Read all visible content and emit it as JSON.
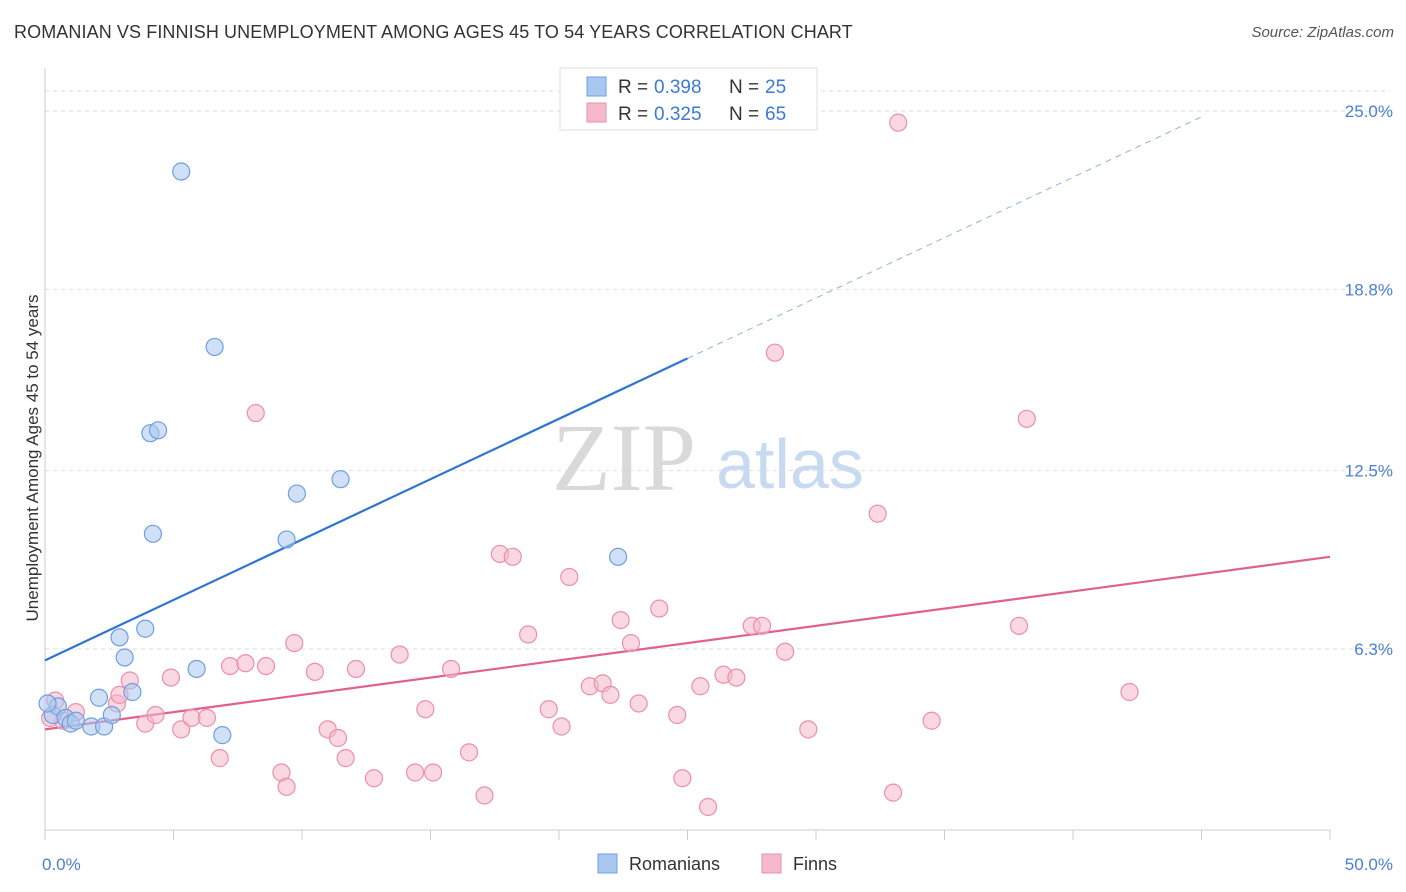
{
  "header": {
    "title": "ROMANIAN VS FINNISH UNEMPLOYMENT AMONG AGES 45 TO 54 YEARS CORRELATION CHART",
    "source": "Source: ZipAtlas.com"
  },
  "watermark": {
    "zip": "ZIP",
    "atlas": "atlas"
  },
  "legend": {
    "r_label": "R =",
    "n_label": "N =",
    "rows": [
      {
        "r": "0.398",
        "n": "25",
        "color": "#a9c8f0"
      },
      {
        "r": "0.325",
        "n": "65",
        "color": "#f6b8cb"
      }
    ]
  },
  "chart_data": {
    "type": "scatter",
    "ylabel": "Unemployment Among Ages 45 to 54 years",
    "xlim": [
      0,
      50
    ],
    "ylim": [
      0,
      26.5
    ],
    "x_tick_labels": [
      "0.0%",
      "50.0%"
    ],
    "y_ticks": [
      6.3,
      12.5,
      18.8,
      25.0
    ],
    "y_tick_labels": [
      "6.3%",
      "12.5%",
      "18.8%",
      "25.0%"
    ],
    "grid": true,
    "legend_position": "top-center",
    "series": [
      {
        "name": "Romanians",
        "color": "#a9c8f0",
        "stroke": "#6f9fe0",
        "line_color": "#2e74d1",
        "trend": {
          "x1": 0,
          "y1": 5.9,
          "x2": 25,
          "y2": 16.4,
          "dashed_to_x": 45,
          "dashed_to_y": 24.8
        },
        "points": [
          [
            0.3,
            4.0
          ],
          [
            0.5,
            4.3
          ],
          [
            0.8,
            3.9
          ],
          [
            1.0,
            3.7
          ],
          [
            1.2,
            3.8
          ],
          [
            1.8,
            3.6
          ],
          [
            2.1,
            4.6
          ],
          [
            2.3,
            3.6
          ],
          [
            2.6,
            4.0
          ],
          [
            2.9,
            6.7
          ],
          [
            3.1,
            6.0
          ],
          [
            3.4,
            4.8
          ],
          [
            3.9,
            7.0
          ],
          [
            4.1,
            13.8
          ],
          [
            4.2,
            10.3
          ],
          [
            4.4,
            13.9
          ],
          [
            5.3,
            22.9
          ],
          [
            5.9,
            5.6
          ],
          [
            6.6,
            16.8
          ],
          [
            6.9,
            3.3
          ],
          [
            9.4,
            10.1
          ],
          [
            9.8,
            11.7
          ],
          [
            11.5,
            12.2
          ],
          [
            22.3,
            9.5
          ],
          [
            0.1,
            4.4
          ]
        ]
      },
      {
        "name": "Finns",
        "color": "#f6b8cb",
        "stroke": "#ea8fae",
        "line_color": "#e0608f",
        "trend": {
          "x1": 0,
          "y1": 3.5,
          "x2": 50,
          "y2": 9.5
        },
        "points": [
          [
            0.4,
            4.5
          ],
          [
            0.7,
            3.8
          ],
          [
            1.2,
            4.1
          ],
          [
            2.8,
            4.4
          ],
          [
            2.9,
            4.7
          ],
          [
            3.3,
            5.2
          ],
          [
            3.9,
            3.7
          ],
          [
            4.3,
            4.0
          ],
          [
            4.9,
            5.3
          ],
          [
            5.3,
            3.5
          ],
          [
            5.7,
            3.9
          ],
          [
            6.3,
            3.9
          ],
          [
            6.8,
            2.5
          ],
          [
            7.2,
            5.7
          ],
          [
            7.8,
            5.8
          ],
          [
            8.2,
            14.5
          ],
          [
            8.6,
            5.7
          ],
          [
            9.2,
            2.0
          ],
          [
            9.4,
            1.5
          ],
          [
            9.7,
            6.5
          ],
          [
            10.5,
            5.5
          ],
          [
            11.0,
            3.5
          ],
          [
            11.4,
            3.2
          ],
          [
            11.7,
            2.5
          ],
          [
            12.1,
            5.6
          ],
          [
            12.8,
            1.8
          ],
          [
            13.8,
            6.1
          ],
          [
            14.4,
            2.0
          ],
          [
            14.8,
            4.2
          ],
          [
            15.1,
            2.0
          ],
          [
            15.8,
            5.6
          ],
          [
            16.5,
            2.7
          ],
          [
            17.1,
            1.2
          ],
          [
            17.7,
            9.6
          ],
          [
            18.2,
            9.5
          ],
          [
            18.8,
            6.8
          ],
          [
            19.6,
            4.2
          ],
          [
            20.1,
            3.6
          ],
          [
            20.4,
            8.8
          ],
          [
            21.2,
            5.0
          ],
          [
            21.7,
            5.1
          ],
          [
            22.0,
            4.7
          ],
          [
            22.4,
            7.3
          ],
          [
            22.8,
            6.5
          ],
          [
            23.1,
            4.4
          ],
          [
            23.9,
            7.7
          ],
          [
            24.6,
            4.0
          ],
          [
            24.8,
            1.8
          ],
          [
            25.5,
            5.0
          ],
          [
            25.8,
            0.8
          ],
          [
            26.4,
            5.4
          ],
          [
            26.9,
            5.3
          ],
          [
            27.5,
            7.1
          ],
          [
            27.9,
            7.1
          ],
          [
            28.4,
            16.6
          ],
          [
            28.8,
            6.2
          ],
          [
            29.7,
            3.5
          ],
          [
            32.4,
            11.0
          ],
          [
            33.0,
            1.3
          ],
          [
            33.2,
            24.6
          ],
          [
            34.5,
            3.8
          ],
          [
            37.9,
            7.1
          ],
          [
            38.2,
            14.3
          ],
          [
            42.2,
            4.8
          ],
          [
            0.2,
            3.9
          ]
        ]
      }
    ]
  }
}
